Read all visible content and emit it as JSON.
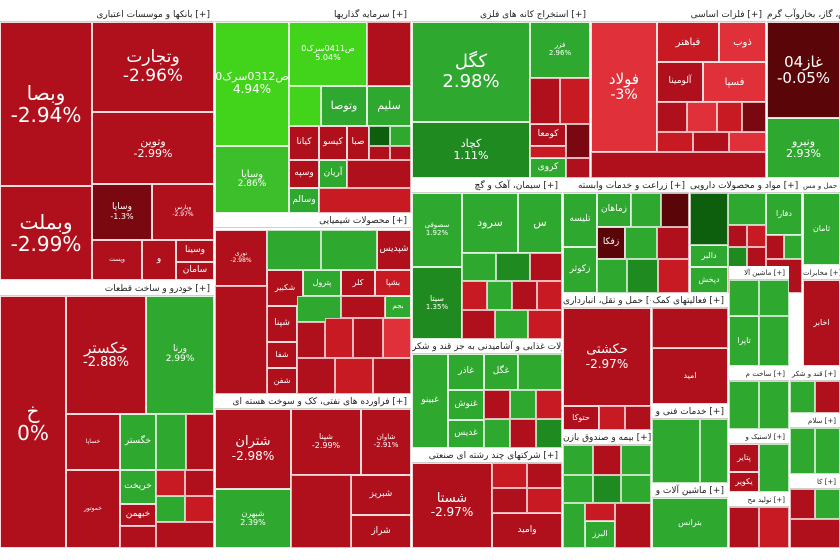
{
  "colors": {
    "deep_red": "#b0101c",
    "red": "#c81a22",
    "light_red": "#e0303a",
    "dark_red": "#7a0810",
    "deep_green": "#1f8a1f",
    "green": "#2fa82f",
    "bright_green": "#41d41a",
    "light_green": "#3cbf2a",
    "dark_green": "#0d5e0d"
  },
  "sectors": [
    {
      "title": "بانکها و موسسات اعتباری [+]",
      "tiles": [
        {
          "name": "وبصا",
          "pct": "-2.94%"
        },
        {
          "name": "وتجارت",
          "pct": "-2.96%"
        },
        {
          "name": "وتوین",
          "pct": "-2.99%"
        },
        {
          "name": "وبملت",
          "pct": "-2.99%"
        },
        {
          "name": "وساپا",
          "pct": "-1.3%"
        },
        {
          "name": "وپارس",
          "pct": "-2.97%"
        },
        {
          "name": "وسینا",
          "pct": ""
        },
        {
          "name": "سامان",
          "pct": ""
        },
        {
          "name": "وپست",
          "pct": ""
        },
        {
          "name": "و",
          "pct": ""
        }
      ]
    },
    {
      "title": "سرمایه گذاریها [+]",
      "tiles": [
        {
          "name": "ص0312سرک0",
          "pct": "4.94%"
        },
        {
          "name": "ص0411سرک0",
          "pct": "5.04%"
        },
        {
          "name": "وسایا",
          "pct": "2.86%"
        },
        {
          "name": "وتوصا",
          "pct": ""
        },
        {
          "name": "سلیم",
          "pct": ""
        },
        {
          "name": "کیانا",
          "pct": ""
        },
        {
          "name": "کیسو",
          "pct": ""
        },
        {
          "name": "وسپه",
          "pct": ""
        },
        {
          "name": "صبا",
          "pct": ""
        },
        {
          "name": "آریان",
          "pct": ""
        },
        {
          "name": "وسالم",
          "pct": ""
        }
      ]
    },
    {
      "title": "استخراج کانه های فلزی [+]",
      "tiles": [
        {
          "name": "کگل",
          "pct": "2.98%"
        },
        {
          "name": "کچاد",
          "pct": "1.11%"
        },
        {
          "name": "فزر",
          "pct": "2.96%"
        },
        {
          "name": "کروی",
          "pct": ""
        },
        {
          "name": "کومعا",
          "pct": ""
        }
      ]
    },
    {
      "title": "فلزات اساسی [+]",
      "tiles": [
        {
          "name": "فولاد",
          "pct": "-3%"
        },
        {
          "name": "فباهنر",
          "pct": ""
        },
        {
          "name": "ذوب",
          "pct": ""
        },
        {
          "name": "فسپا",
          "pct": ""
        },
        {
          "name": "آلومینا",
          "pct": ""
        }
      ]
    },
    {
      "title": "عرضه برق، گاز، بخاروآب گرم [+]",
      "tiles": [
        {
          "name": "غاز04",
          "pct": "-0.05%"
        },
        {
          "name": "ونیرو",
          "pct": "2.93%"
        }
      ]
    },
    {
      "title": "محصولات شیمیایی [+]",
      "tiles": [
        {
          "name": "شپدیس",
          "pct": ""
        },
        {
          "name": "نوری",
          "pct": "-2.98%"
        },
        {
          "name": "شکبیر",
          "pct": ""
        },
        {
          "name": "پترول",
          "pct": ""
        },
        {
          "name": "شپنا",
          "pct": ""
        },
        {
          "name": "شفن",
          "pct": ""
        },
        {
          "name": "بشپا",
          "pct": ""
        },
        {
          "name": "کلر",
          "pct": ""
        },
        {
          "name": "بجم",
          "pct": ""
        },
        {
          "name": "شفا",
          "pct": ""
        }
      ]
    },
    {
      "title": "سیمان، آهک و گچ [+]",
      "tiles": [
        {
          "name": "سصوفی",
          "pct": "1.92%"
        },
        {
          "name": "سرود",
          "pct": ""
        },
        {
          "name": "سیتا",
          "pct": "1.35%"
        },
        {
          "name": "س",
          "pct": ""
        }
      ]
    },
    {
      "title": "زراعت و خدمات وابسته [+]",
      "tiles": [
        {
          "name": "زماهان",
          "pct": ""
        },
        {
          "name": "تلیسه",
          "pct": ""
        },
        {
          "name": "زکوثر",
          "pct": ""
        },
        {
          "name": "زفکا",
          "pct": ""
        }
      ]
    },
    {
      "title": "مواد و محصولات دارویی [+]",
      "tiles": [
        {
          "name": "دپخش",
          "pct": ""
        },
        {
          "name": "دالبر",
          "pct": ""
        },
        {
          "name": "دفارا",
          "pct": ""
        }
      ]
    },
    {
      "title": "خودرو و ساخت قطعات [+]",
      "tiles": [
        {
          "name": "خکستر",
          "pct": "-2.88%"
        },
        {
          "name": "ورنا",
          "pct": "2.99%"
        },
        {
          "name": "خ",
          "pct": "0%"
        },
        {
          "name": "خساپا",
          "pct": ""
        },
        {
          "name": "خگستر",
          "pct": ""
        },
        {
          "name": "خموتور",
          "pct": ""
        },
        {
          "name": "خبهمن",
          "pct": ""
        },
        {
          "name": "خریخت",
          "pct": ""
        }
      ]
    },
    {
      "title": "فراورده های نفتی، کک و سوخت هسته ای [+]",
      "tiles": [
        {
          "name": "شتران",
          "pct": "-2.98%"
        },
        {
          "name": "شپنا",
          "pct": "-2.99%"
        },
        {
          "name": "شبهرن",
          "pct": "2.39%"
        },
        {
          "name": "شاوان",
          "pct": "-2.91%"
        },
        {
          "name": "شبریز",
          "pct": ""
        },
        {
          "name": "شراز",
          "pct": ""
        }
      ]
    },
    {
      "title": "محصولات غذایی و آشامیدنی به جز قند و شکر [+]",
      "tiles": [
        {
          "name": "غگل",
          "pct": ""
        },
        {
          "name": "غاذر",
          "pct": ""
        },
        {
          "name": "غنوش",
          "pct": ""
        },
        {
          "name": "غبینو",
          "pct": ""
        },
        {
          "name": "غدیس",
          "pct": ""
        }
      ]
    },
    {
      "title": "شرکتهای چند رشته ای صنعتی [+]",
      "tiles": [
        {
          "name": "شستا",
          "pct": "-2.97%"
        },
        {
          "name": "وامید",
          "pct": ""
        }
      ]
    },
    {
      "title": "حمل و نقل، انبارداری [+]",
      "tiles": [
        {
          "name": "حکشتی",
          "pct": "-2.97%"
        },
        {
          "name": "حتوکا",
          "pct": ""
        }
      ]
    },
    {
      "title": "بیمه و صندوق بازن [+]",
      "tiles": [
        {
          "name": "البرز",
          "pct": ""
        }
      ]
    },
    {
      "title": "فعالیتهای کمک [+]",
      "tiles": [
        {
          "name": "امید",
          "pct": ""
        }
      ]
    },
    {
      "title": "خدمات فنی و [+]",
      "tiles": []
    },
    {
      "title": "ماشین آلات و [+]",
      "tiles": [
        {
          "name": "بترانس",
          "pct": ""
        }
      ]
    },
    {
      "title": "ماشین آلا [+]",
      "tiles": [
        {
          "name": "تاپرا",
          "pct": ""
        }
      ]
    },
    {
      "title": "ساخت م [+]",
      "tiles": []
    },
    {
      "title": "لاستیک و [+]",
      "tiles": [
        {
          "name": "پتایر",
          "pct": ""
        },
        {
          "name": "یکویر",
          "pct": ""
        }
      ]
    },
    {
      "title": "تولید مح [+]",
      "tiles": []
    },
    {
      "title": "کا [+]",
      "tiles": []
    },
    {
      "title": "قند و شکر [+]",
      "tiles": []
    },
    {
      "title": "سلام [+]",
      "tiles": []
    },
    {
      "title": "مخابرات [+]",
      "tiles": [
        {
          "name": "اخابر",
          "pct": ""
        }
      ]
    },
    {
      "title": "حمل و مس [+]",
      "tiles": [
        {
          "name": "ثامان",
          "pct": ""
        }
      ]
    }
  ]
}
